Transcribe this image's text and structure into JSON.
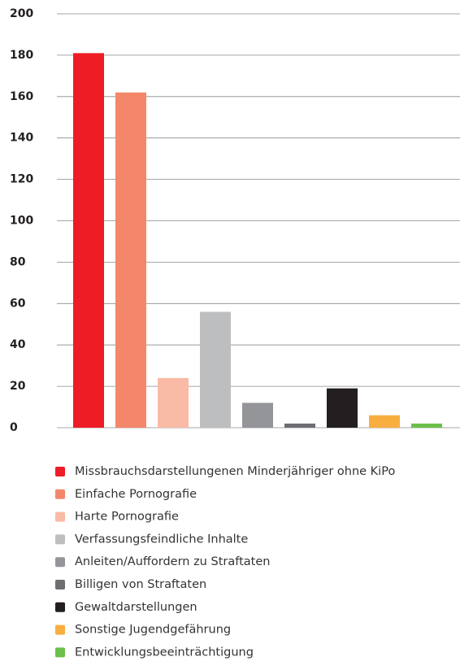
{
  "chart_data": {
    "type": "bar",
    "categories": [
      "Missbrauchsdarstellungenen Minderjähriger ohne KiPo",
      "Einfache Pornografie",
      "Harte Pornografie",
      "Verfassungsfeindliche Inhalte",
      "Anleiten/Auffordern zu Straftaten",
      "Billigen von Straftaten",
      "Gewaltdarstellungen",
      "Sonstige Jugendgefährung",
      "Entwicklungsbeeinträchtigung"
    ],
    "values": [
      181,
      162,
      24,
      56,
      12,
      2,
      19,
      6,
      2
    ],
    "colors": [
      "#ee1c25",
      "#f4876a",
      "#f9bba6",
      "#bdbec0",
      "#939598",
      "#6d6e71",
      "#231f20",
      "#f9ae40",
      "#6cbf4a"
    ],
    "ylim": [
      0,
      200
    ],
    "yticks": [
      0,
      20,
      40,
      60,
      80,
      100,
      120,
      140,
      160,
      180,
      200
    ],
    "grid": true
  }
}
